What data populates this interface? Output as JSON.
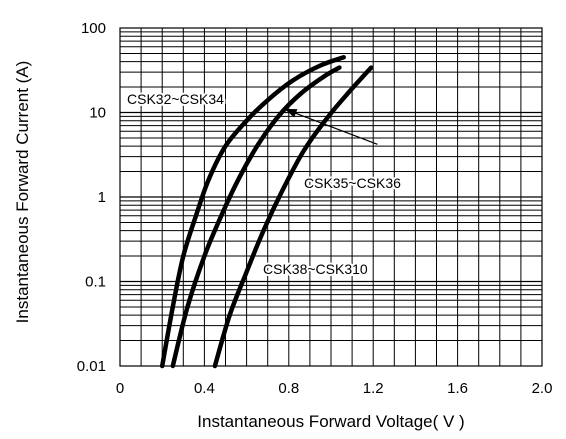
{
  "chart_data": {
    "type": "line",
    "title": "",
    "xlabel": "Instantaneous Forward Voltage( V )",
    "ylabel": "Instantaneous Forward Current (A)",
    "xlim": [
      0,
      2.0
    ],
    "ylim": [
      0.01,
      100
    ],
    "yscale": "log",
    "grid": true,
    "x_ticks": [
      "0",
      "0.4",
      "0.8",
      "1.2",
      "1.6",
      "2.0"
    ],
    "y_ticks": [
      "0.01",
      "0.1",
      "1",
      "10",
      "100"
    ],
    "series": [
      {
        "name": "CSK32~CSK34",
        "x": [
          0.2,
          0.25,
          0.3,
          0.36,
          0.42,
          0.5,
          0.6,
          0.7,
          0.82,
          0.95,
          1.06
        ],
        "y": [
          0.01,
          0.05,
          0.2,
          0.6,
          1.6,
          4,
          8,
          14,
          24,
          36,
          45
        ]
      },
      {
        "name": "CSK35~CSK36",
        "x": [
          0.25,
          0.32,
          0.4,
          0.48,
          0.56,
          0.65,
          0.75,
          0.86,
          0.97,
          1.04
        ],
        "y": [
          0.01,
          0.05,
          0.2,
          0.6,
          1.6,
          4,
          9,
          17,
          27,
          34
        ]
      },
      {
        "name": "CSK38~CSK310",
        "x": [
          0.45,
          0.52,
          0.6,
          0.68,
          0.77,
          0.87,
          0.98,
          1.09,
          1.19
        ],
        "y": [
          0.01,
          0.04,
          0.13,
          0.4,
          1.2,
          3.5,
          8.5,
          18,
          34
        ]
      }
    ],
    "annotations": [
      {
        "text": "CSK32~CSK34",
        "x": 0.06,
        "y": 15
      },
      {
        "text": "CSK35~CSK36",
        "x": 0.87,
        "y": 2.2
      },
      {
        "text": "CSK38~CSK310",
        "x": 0.68,
        "y": 0.28
      }
    ],
    "arrow": {
      "from": [
        1.22,
        4.2
      ],
      "to": [
        0.78,
        11
      ]
    }
  }
}
